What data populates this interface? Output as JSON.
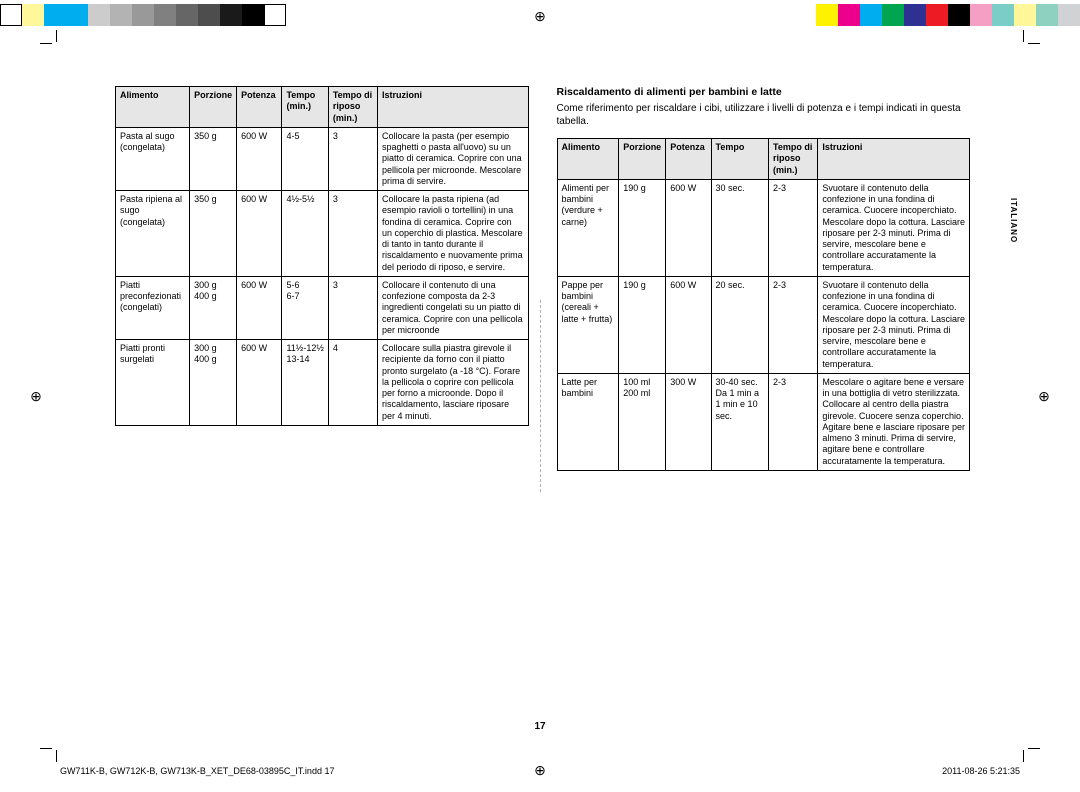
{
  "color_bar": {
    "left_colors": [
      "#ffffff",
      "#fff799",
      "#00adee",
      "#00adee",
      "#cccccc",
      "#b3b3b3",
      "#999999",
      "#808080",
      "#666666",
      "#4d4d4d",
      "#1a1a1a",
      "#000000",
      "#ffffff"
    ],
    "right_colors": [
      "#fff200",
      "#ed008c",
      "#00adee",
      "#00a550",
      "#2e3092",
      "#ed1c24",
      "#000000",
      "#f59fc5",
      "#7bcdc8",
      "#fff799",
      "#8ed1c0",
      "#d1d2d4"
    ],
    "swatch_width": 22
  },
  "side_tab": "ITALIANO",
  "page_number": "17",
  "footer": {
    "left": "GW711K-B, GW712K-B, GW713K-B_XET_DE68-03895C_IT.indd   17",
    "right": "2011-08-26   5:21:35"
  },
  "left_table": {
    "headers": [
      "Alimento",
      "Porzione",
      "Potenza",
      "Tempo (min.)",
      "Tempo di riposo (min.)",
      "Istruzioni"
    ],
    "rows": [
      {
        "c": [
          "Pasta al sugo (congelata)",
          "350 g",
          "600 W",
          "4-5",
          "3",
          "Collocare la pasta (per esempio spaghetti o pasta all'uovo) su un piatto di ceramica. Coprire con una pellicola per microonde. Mescolare prima di servire."
        ]
      },
      {
        "c": [
          "Pasta ripiena al sugo (congelata)",
          "350 g",
          "600 W",
          "4½-5½",
          "3",
          "Collocare la pasta ripiena (ad esempio ravioli o tortellini) in una fondina di ceramica. Coprire con un coperchio di plastica. Mescolare di tanto in tanto durante il riscaldamento e nuovamente prima del periodo di riposo, e servire."
        ]
      },
      {
        "c": [
          "Piatti preconfezionati (congelati)",
          "300 g\n400 g",
          "600 W",
          "5-6\n6-7",
          "3",
          "Collocare il contenuto di una confezione composta da 2-3 ingredienti congelati su un piatto di ceramica. Coprire con una pellicola per microonde"
        ]
      },
      {
        "c": [
          "Piatti pronti surgelati",
          "300 g\n400 g",
          "600 W",
          "11½-12½\n13-14",
          "4",
          "Collocare sulla piastra girevole il recipiente da forno con il piatto pronto surgelato (a -18 °C). Forare la pellicola o coprire con pellicola per forno a microonde. Dopo il riscaldamento, lasciare riposare per 4 minuti."
        ]
      }
    ],
    "col_widths": [
      "18%",
      "11%",
      "11%",
      "11%",
      "12%",
      "37%"
    ]
  },
  "right_section": {
    "heading": "Riscaldamento di alimenti per bambini e latte",
    "intro": "Come riferimento per riscaldare i cibi, utilizzare i livelli di potenza e i tempi indicati in questa tabella.",
    "headers": [
      "Alimento",
      "Porzione",
      "Potenza",
      "Tempo",
      "Tempo di riposo (min.)",
      "Istruzioni"
    ],
    "rows": [
      {
        "c": [
          "Alimenti per bambini (verdure + carne)",
          "190 g",
          "600 W",
          "30 sec.",
          "2-3",
          "Svuotare il contenuto della confezione in una fondina di ceramica. Cuocere incoperchiato. Mescolare dopo la cottura. Lasciare riposare per 2-3 minuti. Prima di servire, mescolare bene e controllare accuratamente la temperatura."
        ]
      },
      {
        "c": [
          "Pappe per bambini (cereali + latte + frutta)",
          "190 g",
          "600 W",
          "20 sec.",
          "2-3",
          "Svuotare il contenuto della confezione in una fondina di ceramica. Cuocere incoperchiato. Mescolare dopo la cottura. Lasciare riposare per 2-3 minuti. Prima di servire, mescolare bene e controllare accuratamente la temperatura."
        ]
      },
      {
        "c": [
          "Latte per bambini",
          "100 ml\n200 ml",
          "300 W",
          "30-40 sec.\nDa 1 min a 1 min e 10 sec.",
          "2-3",
          "Mescolare o agitare bene e versare in una bottiglia di vetro sterilizzata. Collocare al centro della piastra girevole. Cuocere senza coperchio. Agitare bene e lasciare riposare per almeno 3 minuti. Prima di servire, agitare bene e controllare accuratamente la temperatura."
        ]
      }
    ],
    "col_widths": [
      "15%",
      "11%",
      "11%",
      "14%",
      "12%",
      "37%"
    ]
  }
}
